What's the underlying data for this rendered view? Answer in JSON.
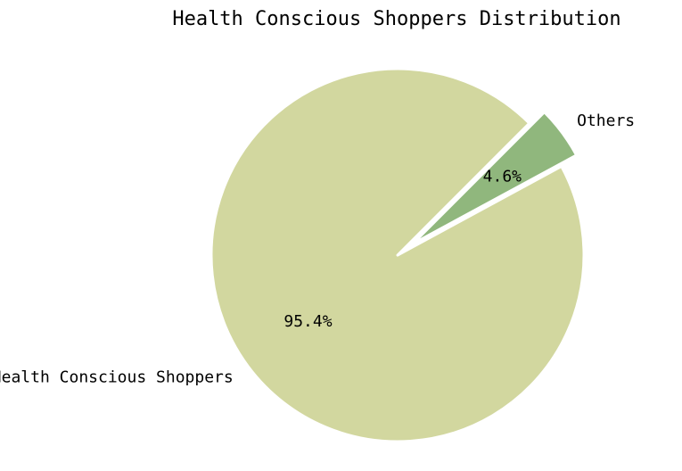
{
  "chart_data": {
    "type": "pie",
    "title": "Health Conscious Shoppers Distribution",
    "slices": [
      {
        "label": "Health Conscious Shoppers",
        "value": 95.4,
        "pct_text": "95.4%",
        "color": "#d2d79f",
        "exploded": false
      },
      {
        "label": "Others",
        "value": 4.6,
        "pct_text": "4.6%",
        "color": "#90b77d",
        "exploded": true
      }
    ],
    "legend": "none",
    "start_angle_deg": 45,
    "direction": "counterclockwise"
  }
}
